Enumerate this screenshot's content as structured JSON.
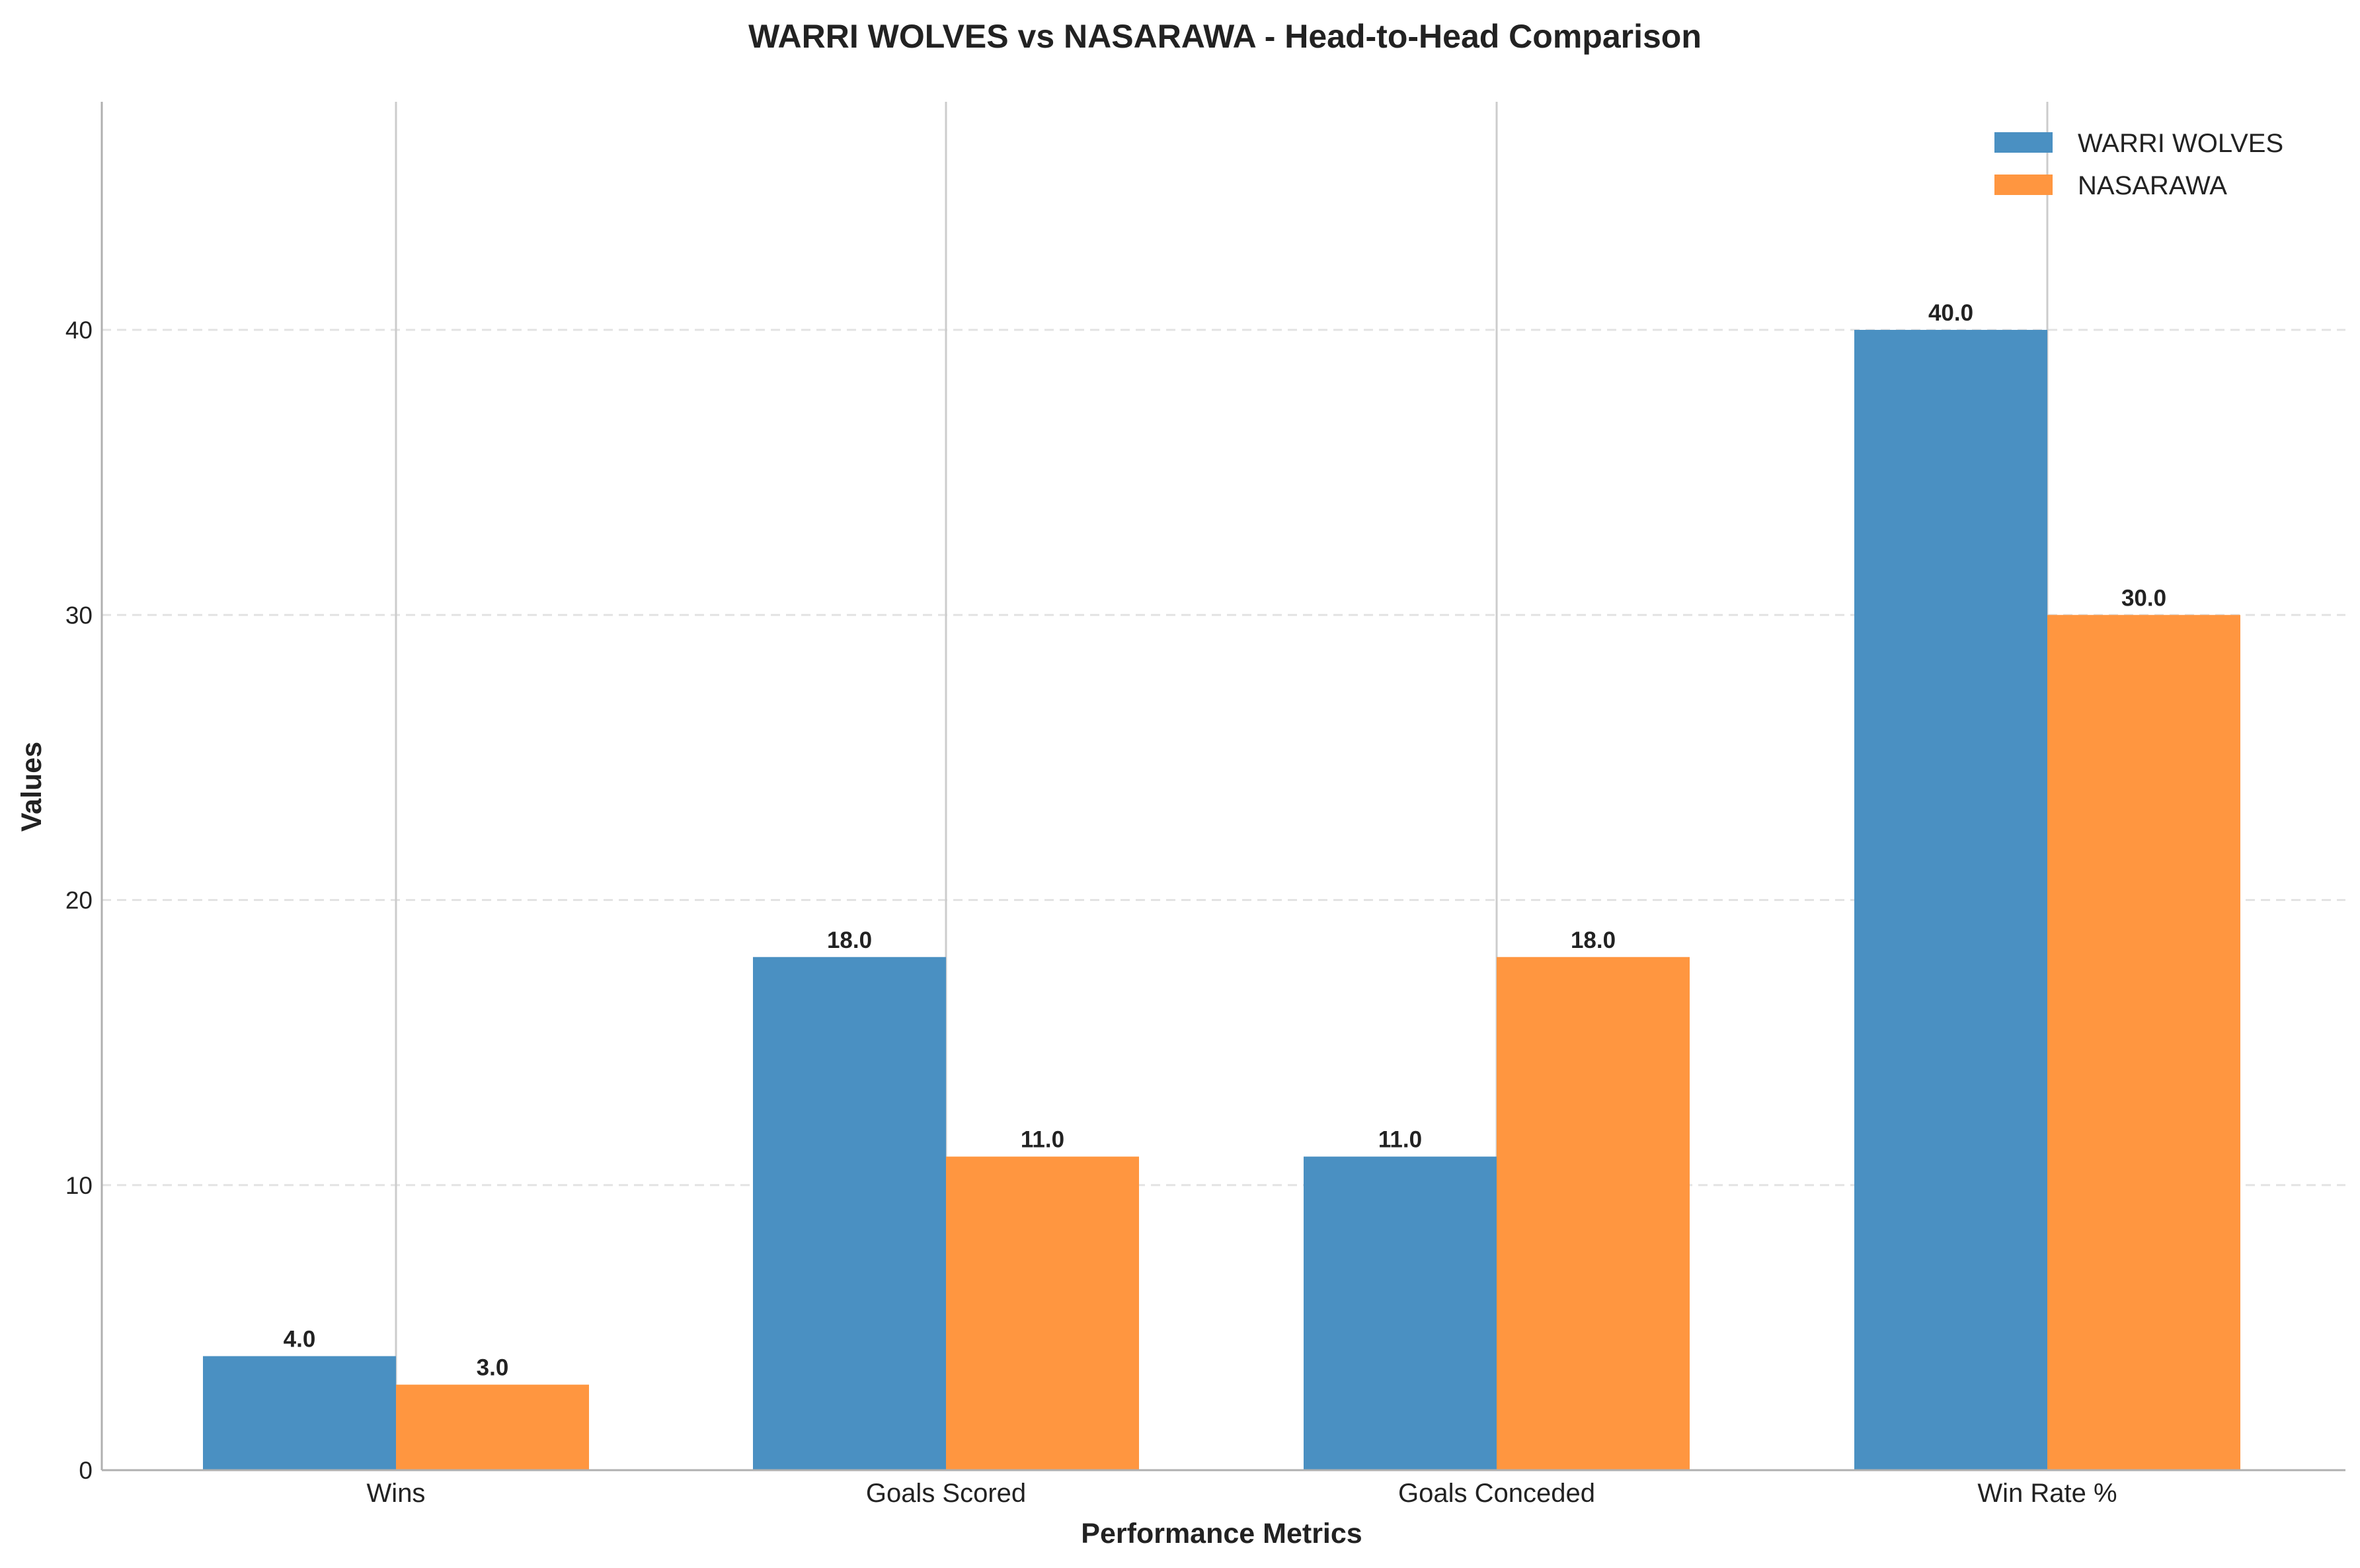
{
  "chart_data": {
    "type": "bar",
    "title": "WARRI WOLVES vs NASARAWA - Head-to-Head Comparison",
    "xlabel": "Performance Metrics",
    "ylabel": "Values",
    "categories": [
      "Wins",
      "Goals Scored",
      "Goals Conceded",
      "Win Rate %"
    ],
    "series": [
      {
        "name": "WARRI WOLVES",
        "values": [
          4.0,
          18.0,
          11.0,
          40.0
        ],
        "color": "#4a90c2"
      },
      {
        "name": "NASARAWA",
        "values": [
          3.0,
          11.0,
          18.0,
          30.0
        ],
        "color": "#ff9640"
      }
    ],
    "value_labels": [
      [
        "4.0",
        "18.0",
        "11.0",
        "40.0"
      ],
      [
        "3.0",
        "11.0",
        "18.0",
        "30.0"
      ]
    ],
    "ylim": [
      0,
      48
    ],
    "yticks": [
      0,
      10,
      20,
      30,
      40
    ],
    "ytick_labels": [
      "0",
      "10",
      "20",
      "30",
      "40"
    ],
    "legend": "top-right",
    "grid": {
      "horizontal": "dashed",
      "vertical": "solid at category centers"
    }
  }
}
